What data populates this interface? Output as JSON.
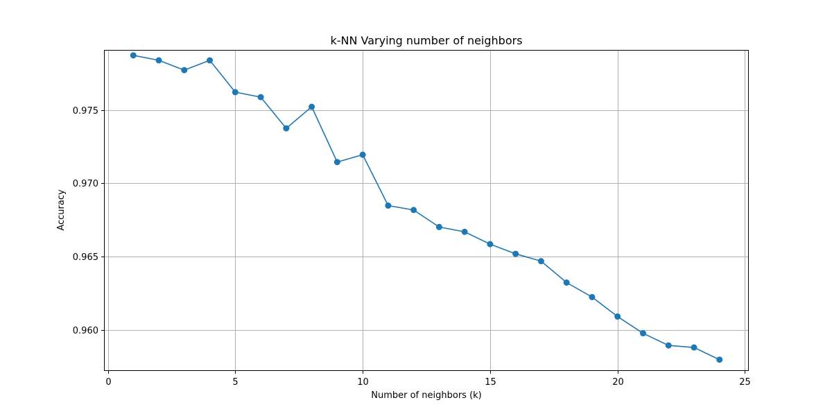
{
  "chart_data": {
    "type": "line",
    "title": "k-NN Varying number of neighbors",
    "xlabel": "Number of neighbors (k)",
    "ylabel": "Accuracy",
    "xlim": [
      -0.15,
      25.15
    ],
    "ylim": [
      0.9572,
      0.9791
    ],
    "xticks": [
      0,
      5,
      10,
      15,
      20,
      25
    ],
    "xtick_labels": [
      "0",
      "5",
      "10",
      "15",
      "20",
      "25"
    ],
    "yticks": [
      0.96,
      0.965,
      0.97,
      0.975
    ],
    "ytick_labels": [
      "0.960",
      "0.965",
      "0.970",
      "0.975"
    ],
    "grid": true,
    "line_color": "#1f77b4",
    "marker": "circle",
    "series": [
      {
        "x": [
          1,
          2,
          3,
          4,
          5,
          6,
          7,
          8,
          9,
          10,
          11,
          12,
          13,
          14,
          15,
          16,
          17,
          18,
          19,
          20,
          21,
          22,
          23,
          24
        ],
        "values": [
          0.97873,
          0.97839,
          0.97772,
          0.97839,
          0.97622,
          0.97588,
          0.97375,
          0.97522,
          0.97145,
          0.97195,
          0.96848,
          0.96818,
          0.96702,
          0.96669,
          0.96585,
          0.96519,
          0.96469,
          0.96323,
          0.96224,
          0.96091,
          0.95977,
          0.95894,
          0.9588,
          0.95797
        ]
      }
    ]
  }
}
